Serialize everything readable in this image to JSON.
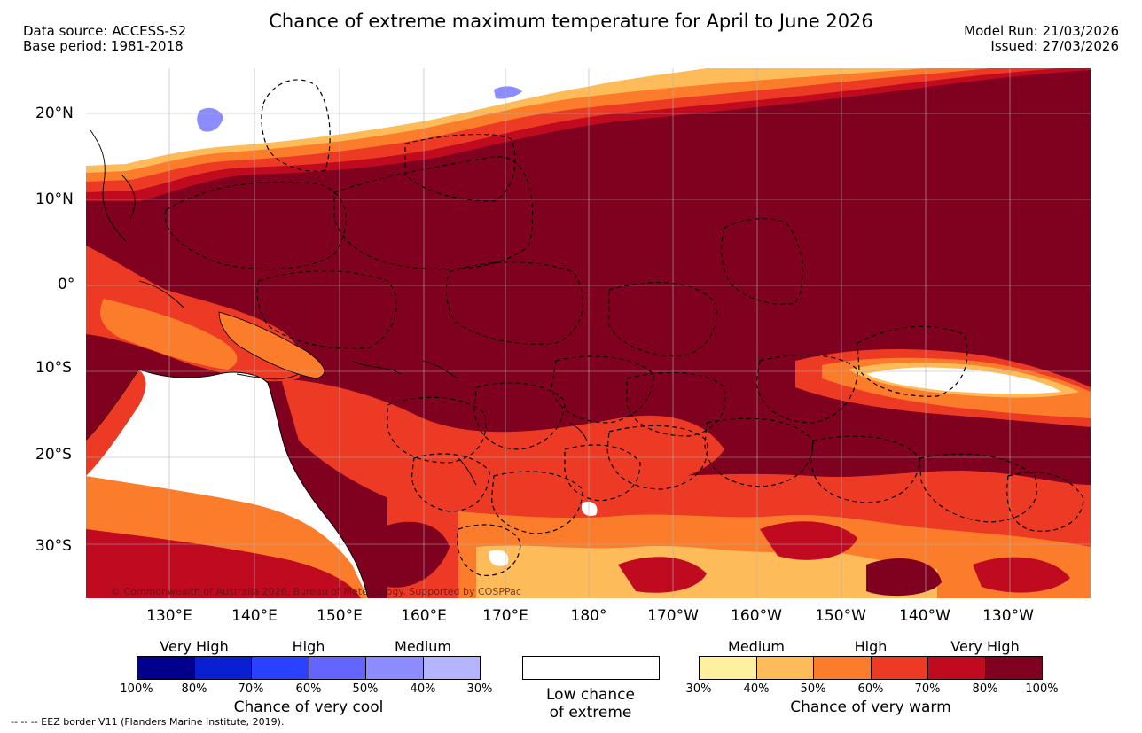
{
  "header": {
    "title": "Chance of extreme maximum temperature for April to June 2026",
    "data_source": "Data source: ACCESS-S2",
    "base_period": "Base period: 1981-2018",
    "model_run": "Model Run: 21/03/2026",
    "issued": "Issued: 27/03/2026"
  },
  "map": {
    "longitude_labels": [
      "130°E",
      "140°E",
      "150°E",
      "160°E",
      "170°E",
      "180°",
      "170°W",
      "160°W",
      "150°W",
      "140°W",
      "130°W"
    ],
    "latitude_labels": [
      "20°N",
      "10°N",
      "0°",
      "10°S",
      "20°S",
      "30°S"
    ],
    "copyright": "© Commonwealth of Australia 2026, Bureau of Meteorology. Supported by COSPPac"
  },
  "legend": {
    "cool": {
      "headers": [
        "Very High",
        "High",
        "Medium"
      ],
      "ticks": [
        "100%",
        "80%",
        "70%",
        "60%",
        "50%",
        "40%",
        "30%"
      ],
      "caption": "Chance of very cool",
      "colors": [
        "#00008c",
        "#0a1fd2",
        "#2a41ff",
        "#6464ff",
        "#8c8cff",
        "#b4b4ff"
      ]
    },
    "low": {
      "caption_line1": "Low chance",
      "caption_line2": "of extreme"
    },
    "warm": {
      "headers": [
        "Medium",
        "High",
        "Very High"
      ],
      "ticks": [
        "30%",
        "40%",
        "50%",
        "60%",
        "70%",
        "80%",
        "100%"
      ],
      "caption": "Chance of very warm",
      "colors": [
        "#fff0a0",
        "#fdbb5a",
        "#fb7d2c",
        "#ec3a24",
        "#c00a20",
        "#800020"
      ]
    }
  },
  "footnote": "-- -- -- EEZ border V11 (Flanders Marine Institute, 2019)."
}
